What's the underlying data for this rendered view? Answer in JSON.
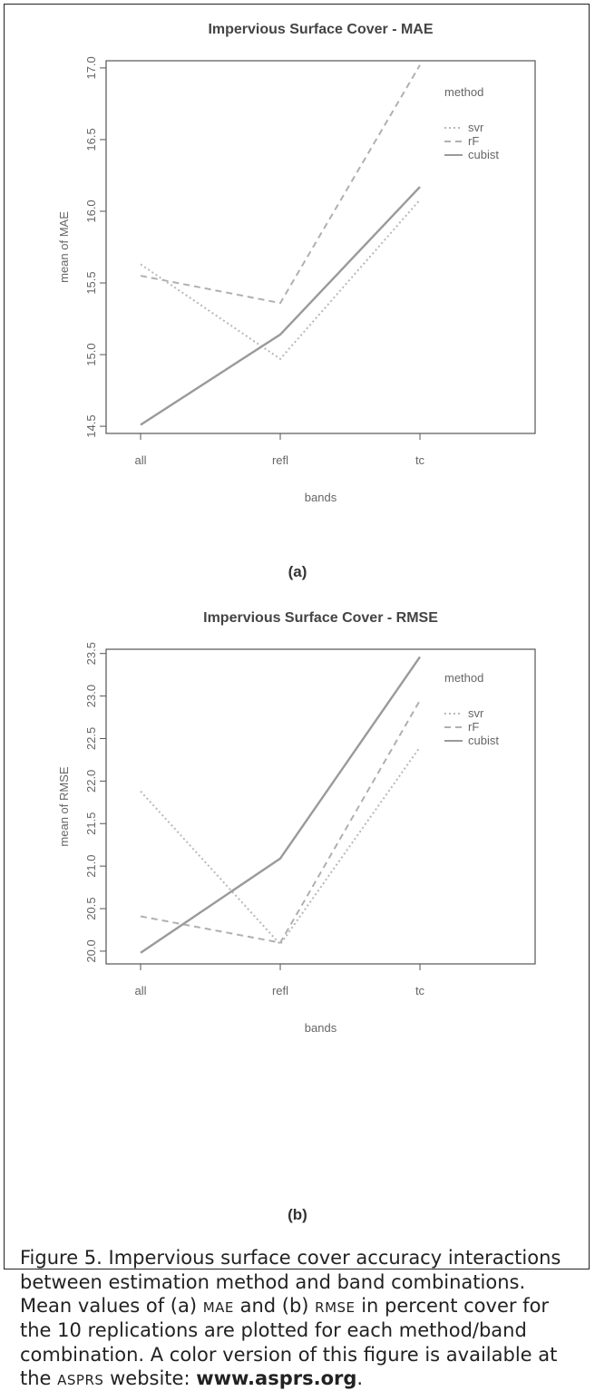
{
  "panel_a": {
    "label": "(a)",
    "chart_data": {
      "type": "line",
      "title": "Impervious Surface Cover - MAE",
      "xlabel": "bands",
      "ylabel": "mean of MAE",
      "categories": [
        "all",
        "refl",
        "tc"
      ],
      "ylim": [
        14.45,
        17.05
      ],
      "yticks": [
        "14.5",
        "15.0",
        "15.5",
        "16.0",
        "16.5",
        "17.0"
      ],
      "legend_title": "method",
      "legend_position": "top-right",
      "series": [
        {
          "name": "svr",
          "values": [
            15.63,
            14.97,
            16.08
          ],
          "color": "#b8b8b8",
          "dash": "dotted"
        },
        {
          "name": "rF",
          "values": [
            15.55,
            15.36,
            17.02
          ],
          "color": "#b0b0b0",
          "dash": "dashed"
        },
        {
          "name": "cubist",
          "values": [
            14.51,
            15.14,
            16.17
          ],
          "color": "#9a9a9a",
          "dash": "solid"
        }
      ]
    }
  },
  "panel_b": {
    "label": "(b)",
    "chart_data": {
      "type": "line",
      "title": "Impervious Surface Cover - RMSE",
      "xlabel": "bands",
      "ylabel": "mean of RMSE",
      "categories": [
        "all",
        "refl",
        "tc"
      ],
      "ylim": [
        19.85,
        23.55
      ],
      "yticks": [
        "20.0",
        "20.5",
        "21.0",
        "21.5",
        "22.0",
        "22.5",
        "23.0",
        "23.5"
      ],
      "legend_title": "method",
      "legend_position": "top-right",
      "series": [
        {
          "name": "svr",
          "values": [
            21.88,
            20.08,
            22.4
          ],
          "color": "#b8b8b8",
          "dash": "dotted"
        },
        {
          "name": "rF",
          "values": [
            20.41,
            20.1,
            22.95
          ],
          "color": "#b0b0b0",
          "dash": "dashed"
        },
        {
          "name": "cubist",
          "values": [
            19.98,
            21.09,
            23.46
          ],
          "color": "#9a9a9a",
          "dash": "solid"
        }
      ]
    }
  },
  "caption": {
    "lead": "Figure 5. Impervious surface cover accuracy interactions between estimation method and band combinations. Mean values of (a) ",
    "abbr_mae": "MAE",
    "mid": " and (b) ",
    "abbr_rmse": "RMSE",
    "tail": " in percent cover for the 10 replications are plotted for each method/band combination. A color version of this figure is available at the ",
    "abbr_asprs": "ASPRS",
    "tail2": " website: ",
    "url": "www.asprs.org",
    "end": "."
  }
}
